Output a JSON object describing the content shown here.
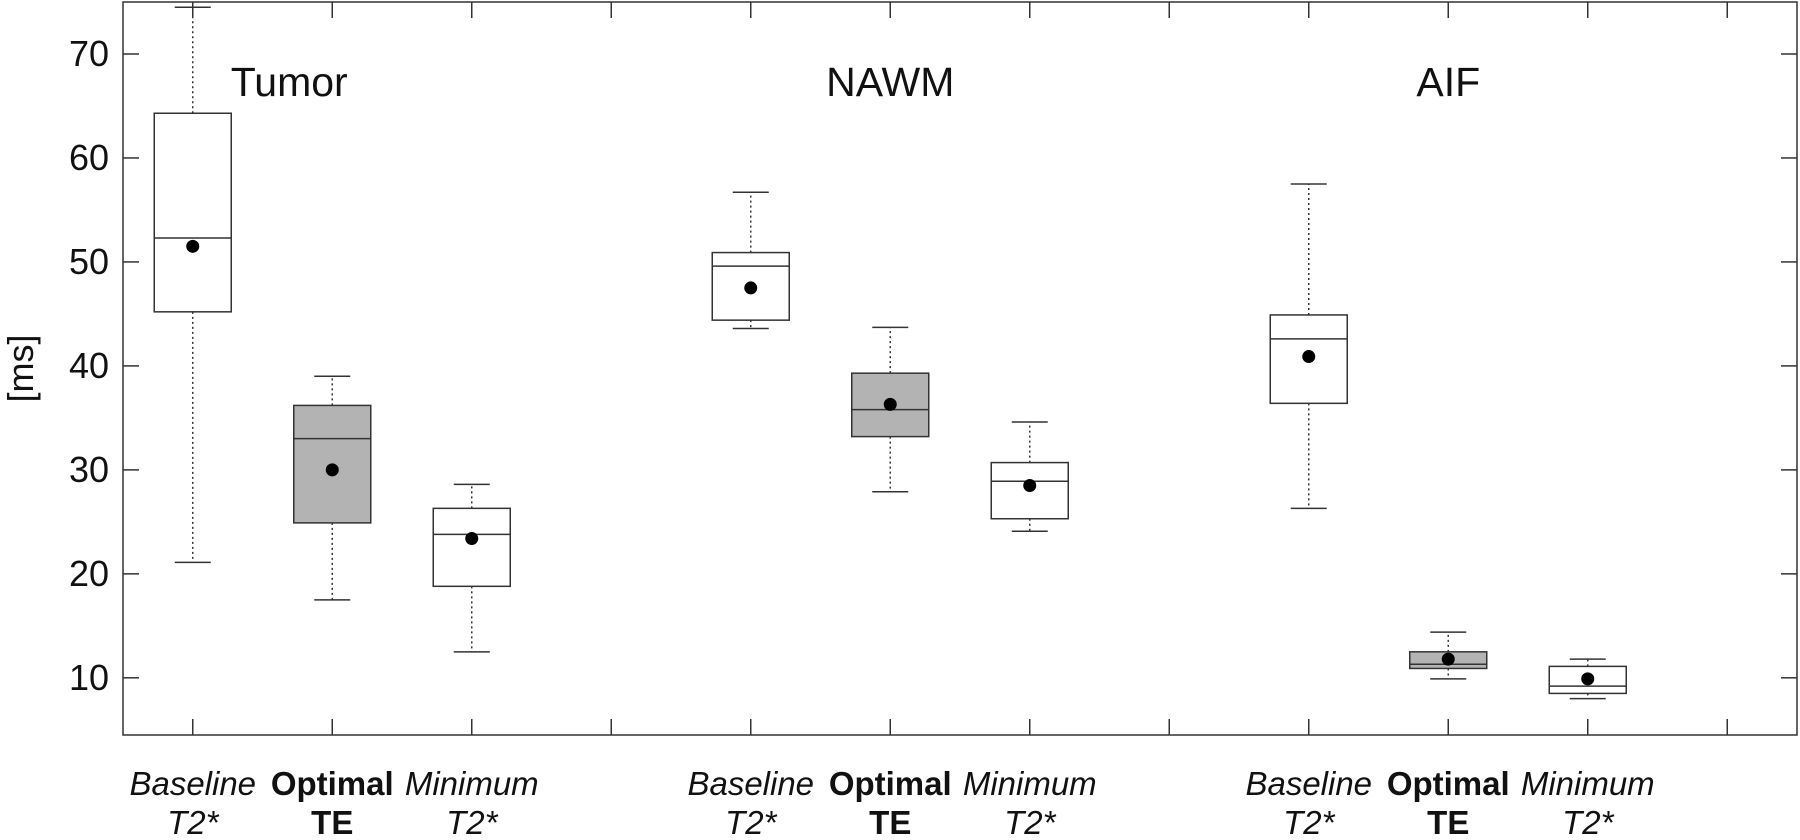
{
  "chart_data": {
    "type": "box",
    "ylabel": "[ms]",
    "ylim": [
      4.5,
      75
    ],
    "yticks": [
      10,
      20,
      30,
      40,
      50,
      60,
      70
    ],
    "grid": false,
    "groups": [
      {
        "name": "Tumor",
        "boxes": [
          {
            "label_line1": "Baseline",
            "label_line2": "T2*",
            "style": "italic",
            "fill": "#ffffff",
            "whisker_low": 21.1,
            "q1": 45.2,
            "median": 52.3,
            "q3": 64.3,
            "whisker_high": 74.5,
            "mean": 51.5
          },
          {
            "label_line1": "Optimal",
            "label_line2": "TE",
            "style": "bold",
            "fill": "#b3b3b3",
            "whisker_low": 17.5,
            "q1": 24.9,
            "median": 33.0,
            "q3": 36.2,
            "whisker_high": 39.0,
            "mean": 30.0
          },
          {
            "label_line1": "Minimum",
            "label_line2": "T2*",
            "style": "italic",
            "fill": "#ffffff",
            "whisker_low": 12.5,
            "q1": 18.8,
            "median": 23.8,
            "q3": 26.3,
            "whisker_high": 28.6,
            "mean": 23.4
          }
        ]
      },
      {
        "name": "NAWM",
        "boxes": [
          {
            "label_line1": "Baseline",
            "label_line2": "T2*",
            "style": "italic",
            "fill": "#ffffff",
            "whisker_low": 43.6,
            "q1": 44.4,
            "median": 49.6,
            "q3": 50.9,
            "whisker_high": 56.7,
            "mean": 47.5
          },
          {
            "label_line1": "Optimal",
            "label_line2": "TE",
            "style": "bold",
            "fill": "#b3b3b3",
            "whisker_low": 27.9,
            "q1": 33.2,
            "median": 35.8,
            "q3": 39.3,
            "whisker_high": 43.7,
            "mean": 36.3
          },
          {
            "label_line1": "Minimum",
            "label_line2": "T2*",
            "style": "italic",
            "fill": "#ffffff",
            "whisker_low": 24.1,
            "q1": 25.3,
            "median": 28.9,
            "q3": 30.7,
            "whisker_high": 34.6,
            "mean": 28.5
          }
        ]
      },
      {
        "name": "AIF",
        "boxes": [
          {
            "label_line1": "Baseline",
            "label_line2": "T2*",
            "style": "italic",
            "fill": "#ffffff",
            "whisker_low": 26.3,
            "q1": 36.4,
            "median": 42.6,
            "q3": 44.9,
            "whisker_high": 57.5,
            "mean": 40.9
          },
          {
            "label_line1": "Optimal",
            "label_line2": "TE",
            "style": "bold",
            "fill": "#b3b3b3",
            "whisker_low": 9.9,
            "q1": 10.9,
            "median": 11.3,
            "q3": 12.5,
            "whisker_high": 14.4,
            "mean": 11.8
          },
          {
            "label_line1": "Minimum",
            "label_line2": "T2*",
            "style": "italic",
            "fill": "#ffffff",
            "whisker_low": 8.0,
            "q1": 8.5,
            "median": 9.2,
            "q3": 11.1,
            "whisker_high": 11.8,
            "mean": 9.9
          }
        ]
      }
    ],
    "colors": {
      "axis": "#333333",
      "box_stroke": "#333333",
      "mean_marker": "#000000"
    }
  }
}
